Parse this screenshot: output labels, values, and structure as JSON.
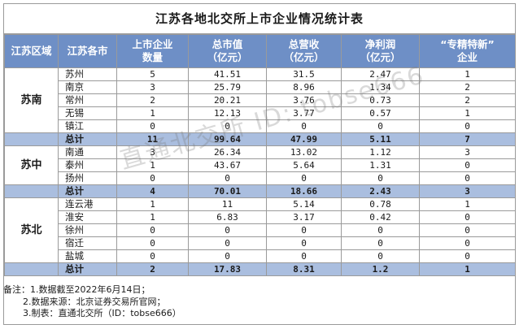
{
  "title": "江苏各地北交所上市企业情况统计表",
  "headers": [
    "江苏区域",
    "江苏各市",
    "上市企业\n数量",
    "总市值\n（亿元）",
    "总营收\n（亿元）",
    "净利润\n（亿元）",
    "“专精特新”\n企业"
  ],
  "regions": [
    {
      "name": "苏南",
      "rows": [
        [
          "苏州",
          "5",
          "41.51",
          "31.5",
          "2.47",
          "1"
        ],
        [
          "南京",
          "3",
          "25.79",
          "8.96",
          "1.34",
          "2"
        ],
        [
          "常州",
          "2",
          "20.21",
          "3.76",
          "0.73",
          "2"
        ],
        [
          "无锡",
          "1",
          "12.13",
          "3.77",
          "0.57",
          "1"
        ],
        [
          "镇江",
          "0",
          "0",
          "0",
          "0",
          "0"
        ]
      ],
      "total": [
        "总计",
        "11",
        "99.64",
        "47.99",
        "5.11",
        "7"
      ]
    },
    {
      "name": "苏中",
      "rows": [
        [
          "南通",
          "3",
          "26.34",
          "13.02",
          "1.12",
          "3"
        ],
        [
          "泰州",
          "1",
          "43.67",
          "5.64",
          "1.31",
          "0"
        ],
        [
          "扬州",
          "0",
          "0",
          "0",
          "0",
          "0"
        ]
      ],
      "total": [
        "总计",
        "4",
        "70.01",
        "18.66",
        "2.43",
        "3"
      ]
    },
    {
      "name": "苏北",
      "rows": [
        [
          "连云港",
          "1",
          "11",
          "5.14",
          "0.78",
          "1"
        ],
        [
          "淮安",
          "1",
          "6.83",
          "3.17",
          "0.42",
          "0"
        ],
        [
          "徐州",
          "0",
          "0",
          "0",
          "0",
          "0"
        ],
        [
          "宿迁",
          "0",
          "0",
          "0",
          "0",
          "0"
        ],
        [
          "盐城",
          "0",
          "0",
          "0",
          "0",
          "0"
        ]
      ],
      "total": [
        "总计",
        "2",
        "17.83",
        "8.31",
        "1.2",
        "1"
      ]
    }
  ],
  "notes": [
    "备注：1.数据截至2022年6月14日；",
    "2.数据来源：北京证券交易所官网；",
    "3.制表：直通北交所（ID：tobse666）"
  ],
  "watermark": "直通北交所 ID: tobse666",
  "colors": {
    "header_bg": "#6e8fc6",
    "total_bg": "#aabedf",
    "border": "#9a9a9a"
  }
}
